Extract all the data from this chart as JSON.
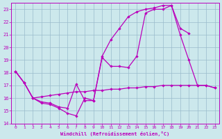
{
  "xlabel": "Windchill (Refroidissement éolien,°C)",
  "bg_color": "#cce8ec",
  "line_color": "#bb00bb",
  "grid_color": "#99bbcc",
  "ylim": [
    14,
    23.5
  ],
  "xlim": [
    -0.5,
    23.5
  ],
  "yticks": [
    14,
    15,
    16,
    17,
    18,
    19,
    20,
    21,
    22,
    23
  ],
  "xticks": [
    0,
    1,
    2,
    3,
    4,
    5,
    6,
    7,
    8,
    9,
    10,
    11,
    12,
    13,
    14,
    15,
    16,
    17,
    18,
    19,
    20,
    21,
    22,
    23
  ],
  "line1_x": [
    0,
    1,
    2,
    3,
    4,
    5,
    6,
    7,
    8,
    9,
    10,
    11,
    12,
    13,
    14,
    15,
    16,
    17,
    18,
    19,
    20,
    21,
    22,
    23
  ],
  "line1_y": [
    18.1,
    17.2,
    16.0,
    15.6,
    15.5,
    15.2,
    14.8,
    14.6,
    16.0,
    15.8,
    19.2,
    18.5,
    18.5,
    18.4,
    19.3,
    22.7,
    23.0,
    23.0,
    23.3,
    21.0,
    19.0,
    17.0,
    17.0,
    16.8
  ],
  "line2_x": [
    0,
    1,
    2,
    3,
    4,
    5,
    6,
    7,
    8,
    9,
    10,
    11,
    12,
    13,
    14,
    15,
    16,
    17,
    18,
    19,
    20,
    21,
    22,
    23
  ],
  "line2_y": [
    18.1,
    17.2,
    16.0,
    15.7,
    15.6,
    15.3,
    15.2,
    17.1,
    15.8,
    15.8,
    19.3,
    20.6,
    21.5,
    22.4,
    22.8,
    23.0,
    23.1,
    23.3,
    23.3,
    21.5,
    21.1,
    null,
    null,
    null
  ],
  "line3_x": [
    0,
    1,
    2,
    3,
    4,
    5,
    6,
    7,
    8,
    9,
    10,
    11,
    12,
    13,
    14,
    15,
    16,
    17,
    18,
    19,
    20,
    21,
    22,
    23
  ],
  "line3_y": [
    18.1,
    17.2,
    16.0,
    16.1,
    16.2,
    16.3,
    16.4,
    16.5,
    16.5,
    16.6,
    16.6,
    16.7,
    16.7,
    16.8,
    16.8,
    16.9,
    16.9,
    17.0,
    17.0,
    17.0,
    17.0,
    17.0,
    17.0,
    16.8
  ]
}
